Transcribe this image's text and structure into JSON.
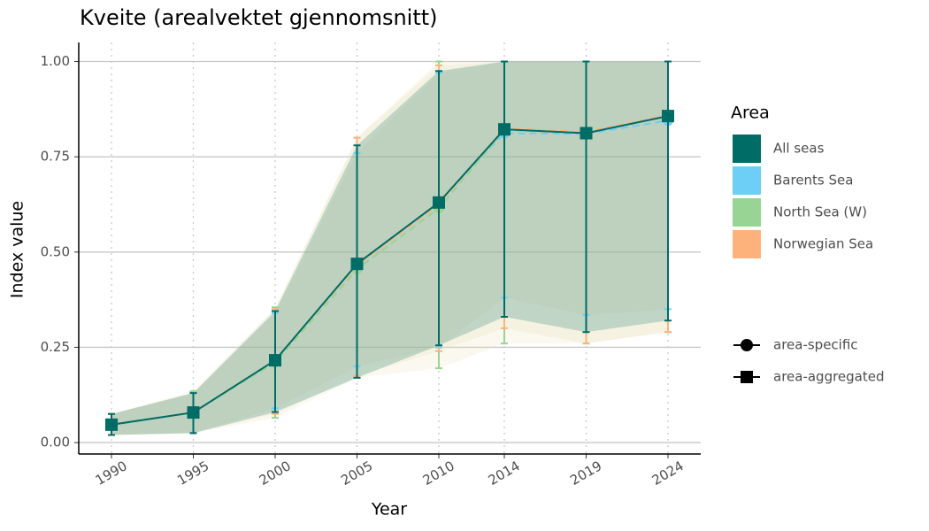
{
  "chart_data": {
    "type": "line",
    "title": "Kveite (arealvektet gjennomsnitt)",
    "x_label": "Year",
    "y_label": "Index value",
    "x": [
      1990,
      1995,
      2000,
      2005,
      2010,
      2014,
      2019,
      2024
    ],
    "xlim": [
      1988,
      2026
    ],
    "xticks": [
      1990,
      1995,
      2000,
      2005,
      2010,
      2014,
      2019,
      2024
    ],
    "ylim": [
      -0.03,
      1.05
    ],
    "yticks": [
      {
        "value": 0,
        "label": "0.00"
      },
      {
        "value": 0.25,
        "label": "0.25"
      },
      {
        "value": 0.5,
        "label": "0.50"
      },
      {
        "value": 0.75,
        "label": "0.75"
      },
      {
        "value": 1,
        "label": "1.00"
      }
    ],
    "grid": true,
    "legend_title": "Area",
    "series": [
      {
        "name": "Barents Sea",
        "color": "#6dcff6",
        "marker": "circle",
        "values": [
          0.047,
          0.079,
          0.216,
          0.469,
          0.63,
          0.812,
          0.81,
          0.845
        ],
        "lower": [
          0.02,
          0.025,
          0.09,
          0.2,
          0.25,
          0.38,
          0.335,
          0.35
        ],
        "upper": [
          0.075,
          0.13,
          0.34,
          0.76,
          0.97,
          1.0,
          1.0,
          1.0
        ]
      },
      {
        "name": "North Sea (W)",
        "color": "#98d493",
        "marker": "circle",
        "values": [
          0.045,
          0.08,
          0.21,
          0.455,
          0.615,
          0.82,
          0.812,
          0.857
        ],
        "lower": [
          0.02,
          0.025,
          0.065,
          0.17,
          0.195,
          0.26,
          0.26,
          0.29
        ],
        "upper": [
          0.075,
          0.135,
          0.355,
          0.8,
          1.0,
          1.0,
          1.0,
          1.0
        ]
      },
      {
        "name": "Norwegian Sea",
        "color": "#fdb27c",
        "marker": "circle",
        "values": [
          0.047,
          0.079,
          0.216,
          0.465,
          0.625,
          0.825,
          0.815,
          0.86
        ],
        "lower": [
          0.02,
          0.025,
          0.075,
          0.175,
          0.24,
          0.3,
          0.26,
          0.29
        ],
        "upper": [
          0.075,
          0.13,
          0.35,
          0.8,
          0.99,
          1.0,
          1.0,
          1.0
        ]
      },
      {
        "name": "All seas",
        "color": "#006c66",
        "marker": "square",
        "values": [
          0.047,
          0.079,
          0.216,
          0.469,
          0.63,
          0.822,
          0.812,
          0.857
        ],
        "lower": [
          0.02,
          0.025,
          0.08,
          0.17,
          0.255,
          0.33,
          0.29,
          0.32
        ],
        "upper": [
          0.075,
          0.13,
          0.345,
          0.78,
          0.975,
          1.0,
          1.0,
          1.0
        ]
      }
    ],
    "legend_order": [
      3,
      0,
      1,
      2
    ],
    "shape_legend": [
      {
        "label": "area-specific",
        "marker": "circle"
      },
      {
        "label": "area-aggregated",
        "marker": "square"
      }
    ]
  }
}
